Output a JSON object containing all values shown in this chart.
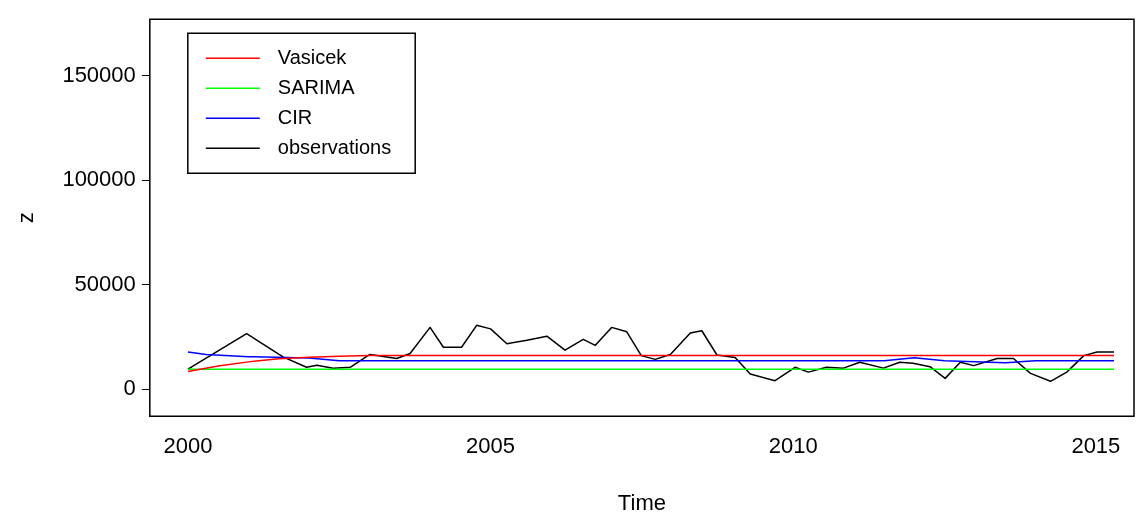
{
  "chart_data": {
    "type": "line",
    "xlabel": "Time",
    "ylabel": "z",
    "xlim": [
      1999.37,
      2015.63
    ],
    "xticks": [
      2000,
      2005,
      2010,
      2015
    ],
    "ylim": [
      -13000,
      177000
    ],
    "yticks": [
      0,
      50000,
      100000,
      150000
    ],
    "grid": false,
    "legend": "top left",
    "marker": "none",
    "line_style": "solid",
    "series": [
      {
        "name": "Vasicek",
        "color": "#ff0000",
        "x": [
          2000,
          2000.5,
          2001,
          2001.5,
          2002,
          2002.5,
          2003,
          2015.3
        ],
        "values": [
          8400,
          11000,
          13000,
          14500,
          15200,
          15700,
          16000,
          16000
        ]
      },
      {
        "name": "SARIMA",
        "color": "#00ff00",
        "x": [
          2000,
          2015.3
        ],
        "values": [
          9500,
          9500
        ]
      },
      {
        "name": "CIR",
        "color": "#0000ff",
        "x": [
          2000,
          2000.3,
          2001,
          2002,
          2002.5,
          2011.5,
          2012,
          2012.5,
          2013.5,
          2014,
          2015.3
        ],
        "values": [
          17700,
          16500,
          15500,
          14800,
          13500,
          13500,
          15000,
          13500,
          12600,
          13500,
          13500
        ]
      },
      {
        "name": "observations",
        "color": "#000000",
        "x": [
          2000,
          2000.97,
          2001.57,
          2001.96,
          2002.13,
          2002.4,
          2002.68,
          2003,
          2003.12,
          2003.45,
          2003.67,
          2004,
          2004.22,
          2004.52,
          2004.77,
          2005,
          2005.27,
          2005.6,
          2005.93,
          2006.23,
          2006.53,
          2006.73,
          2007,
          2007.25,
          2007.49,
          2007.72,
          2007.97,
          2008.3,
          2008.49,
          2008.74,
          2009.04,
          2009.29,
          2009.7,
          2010.03,
          2010.25,
          2010.55,
          2010.83,
          2011.1,
          2011.49,
          2011.76,
          2011.98,
          2012.26,
          2012.51,
          2012.76,
          2012.98,
          2013.37,
          2013.64,
          2013.92,
          2014.25,
          2014.52,
          2014.8,
          2015.02,
          2015.3
        ],
        "values": [
          9500,
          26500,
          15400,
          10400,
          11400,
          10000,
          10400,
          16500,
          16000,
          14600,
          17000,
          29500,
          20000,
          20000,
          30500,
          28800,
          21700,
          23300,
          25300,
          18600,
          23800,
          20900,
          29500,
          27400,
          16000,
          14200,
          16500,
          26800,
          27900,
          16300,
          15100,
          7200,
          4000,
          10400,
          8100,
          10400,
          10000,
          12800,
          10000,
          12800,
          12300,
          10700,
          5100,
          12800,
          11200,
          14600,
          14600,
          7500,
          3700,
          8100,
          16000,
          17700,
          17700
        ]
      }
    ]
  }
}
